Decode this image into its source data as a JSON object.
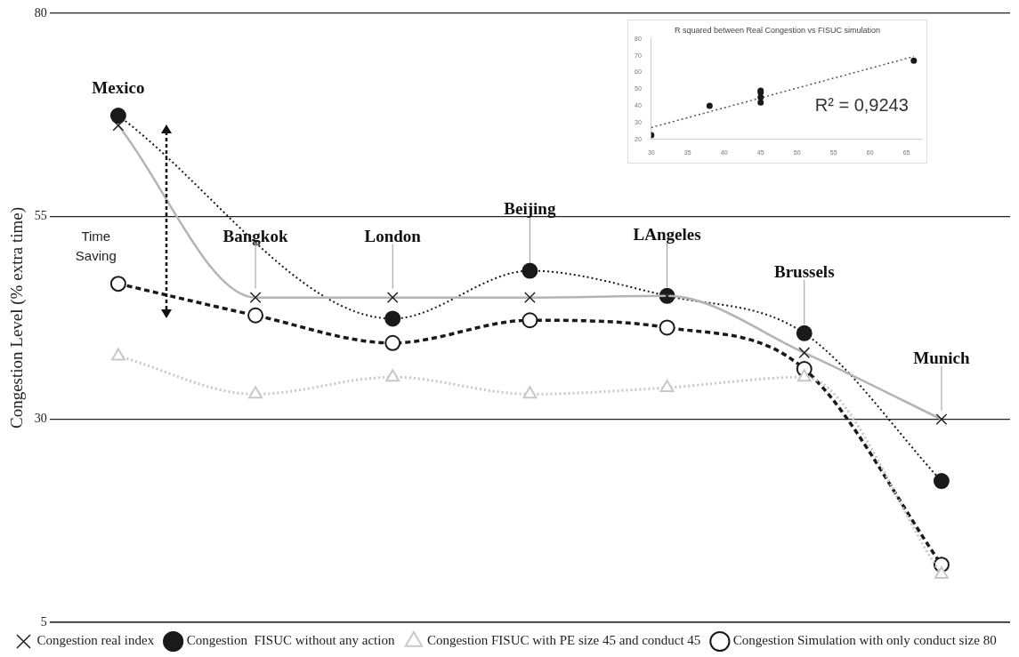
{
  "chart_data": [
    {
      "type": "line",
      "ylabel": "Congestion Level (% extra time)",
      "categories": [
        "Mexico",
        "Bangkok",
        "London",
        "Beijing",
        "LAngeles",
        "Brussels",
        "Munich"
      ],
      "ylim": [
        5,
        80
      ],
      "yticks": [
        5,
        30,
        55,
        80
      ],
      "grid": "y",
      "legend": "bottom",
      "tick_labels": "y",
      "annotations": [
        "Time Saving"
      ],
      "series": [
        {
          "name": "Congestion real index",
          "color": "#b4b4b4",
          "marker": "cross",
          "line_style": "solid",
          "values": [
            66.2,
            45,
            45,
            45,
            45.2,
            38.2,
            30
          ]
        },
        {
          "name": "Congestion  FISUC without any action",
          "color": "#1a1a1a",
          "marker": "circle",
          "line_style": "dotted",
          "values": [
            67.4,
            null,
            42.4,
            48.3,
            45.2,
            40.6,
            22.4
          ]
        },
        {
          "name": "Congestion FISUC with PE size 45 and conduct 45",
          "color": "#c8c8c8",
          "marker": "triangle",
          "line_style": "dotted",
          "values": [
            37.8,
            33.1,
            35.2,
            33.1,
            33.9,
            35.2,
            10.9
          ]
        },
        {
          "name": "Congestion Simulation with only conduct size 80",
          "color": "#1a1a1a",
          "marker": "circle",
          "line_style": "dashed",
          "values": [
            46.7,
            42.8,
            39.4,
            42.2,
            41.3,
            36.2,
            12.1
          ]
        }
      ]
    },
    {
      "type": "scatter",
      "title": "R squared between Real Congestion vs FISUC simulation",
      "xlim": [
        30,
        67
      ],
      "xticks": [
        30,
        35,
        40,
        45,
        50,
        55,
        60,
        65
      ],
      "ylim": [
        20,
        80
      ],
      "yticks": [
        20,
        30,
        40,
        50,
        60,
        70,
        80
      ],
      "annotations": [
        "R² = 0,9243"
      ],
      "series": [
        {
          "color": "#1a1a1a",
          "marker": "circle",
          "x": [
            30,
            38,
            45,
            45,
            45,
            45,
            66
          ],
          "values": [
            22.5,
            40,
            49,
            48,
            45,
            42,
            67
          ]
        },
        {
          "type": "line",
          "marker": "none",
          "line_style": "dotted",
          "color": "#555555",
          "x": [
            30,
            66
          ],
          "values": [
            27,
            69.5
          ]
        }
      ]
    }
  ]
}
